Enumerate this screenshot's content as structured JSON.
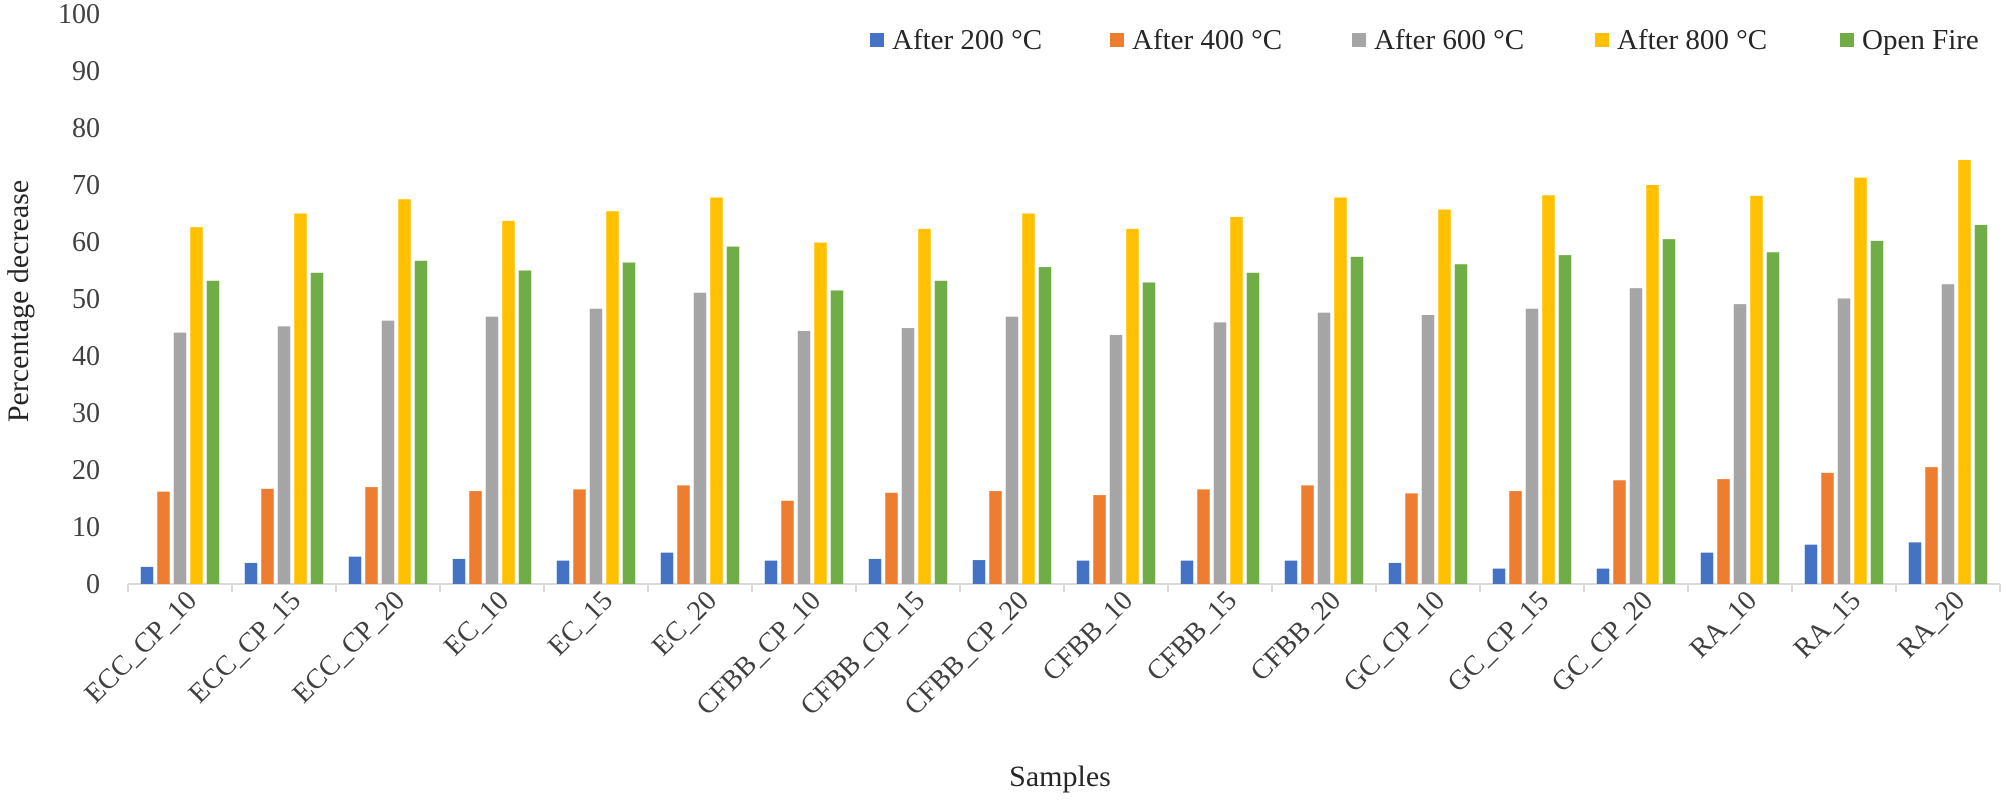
{
  "chart_data": {
    "type": "bar",
    "title": "",
    "xlabel": "Samples",
    "ylabel": "Percentage decrease",
    "ylim": [
      0,
      100
    ],
    "yticks": [
      0,
      10,
      20,
      30,
      40,
      50,
      60,
      70,
      80,
      90,
      100
    ],
    "grid": false,
    "legend_position": "top-right",
    "categories": [
      "ECC_CP_10",
      "ECC_CP_15",
      "ECC_CP_20",
      "EC_10",
      "EC_15",
      "EC_20",
      "CFBB_CP_10",
      "CFBB_CP_15",
      "CFBB_CP_20",
      "CFBB_10",
      "CFBB_15",
      "CFBB_20",
      "GC_CP_10",
      "GC_CP_15",
      "GC_CP_20",
      "RA_10",
      "RA_15",
      "RA_20"
    ],
    "series": [
      {
        "name": "After 200 °C",
        "color": "#4472C4",
        "values": [
          3,
          3.7,
          4.8,
          4.4,
          4.1,
          5.5,
          4.1,
          4.4,
          4.2,
          4.1,
          4.1,
          4.1,
          3.7,
          2.7,
          2.7,
          5.5,
          6.9,
          7.3
        ]
      },
      {
        "name": "After 400 °C",
        "color": "#ED7D31",
        "values": [
          16.2,
          16.7,
          17,
          16.3,
          16.6,
          17.3,
          14.6,
          16,
          16.3,
          15.6,
          16.6,
          17.3,
          15.9,
          16.3,
          18.2,
          18.4,
          19.5,
          20.5
        ]
      },
      {
        "name": "After 600 °C",
        "color": "#A5A5A5",
        "values": [
          44.1,
          45.2,
          46.2,
          46.9,
          48.3,
          51.1,
          44.4,
          44.9,
          46.9,
          43.7,
          45.9,
          47.6,
          47.2,
          48.3,
          51.9,
          49.1,
          50.1,
          52.6
        ]
      },
      {
        "name": "After 800 °C",
        "color": "#FFC000",
        "values": [
          62.6,
          65,
          67.5,
          63.7,
          65.4,
          67.8,
          59.9,
          62.3,
          65,
          62.3,
          64.4,
          67.8,
          65.7,
          68.2,
          70,
          68.1,
          71.3,
          74.4
        ]
      },
      {
        "name": "Open Fire",
        "color": "#70AD47",
        "values": [
          53.2,
          54.6,
          56.7,
          55,
          56.4,
          59.2,
          51.5,
          53.2,
          55.6,
          52.9,
          54.6,
          57.4,
          56.1,
          57.7,
          60.5,
          58.2,
          60.2,
          63
        ]
      }
    ]
  }
}
